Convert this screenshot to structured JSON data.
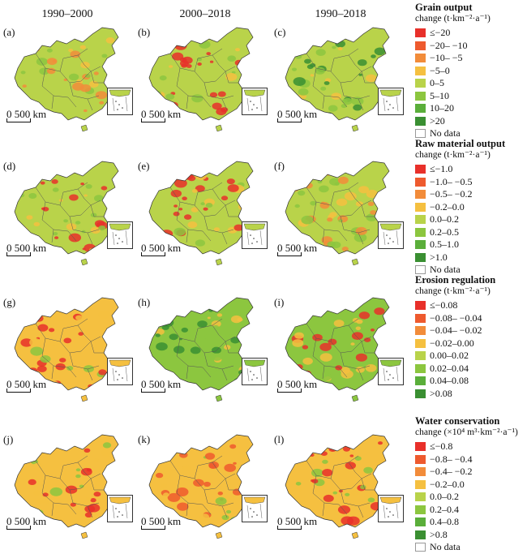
{
  "columns": [
    "1990–2000",
    "2000–2018",
    "1990–2018"
  ],
  "panel_letters": [
    "(a)",
    "(b)",
    "(c)",
    "(d)",
    "(e)",
    "(f)",
    "(g)",
    "(h)",
    "(i)",
    "(j)",
    "(k)",
    "(l)"
  ],
  "scale_label": "0 500 km",
  "legends": [
    {
      "title": "Grain output",
      "subtitle": "change (t·km⁻²·a⁻¹)",
      "classes": [
        "≤−20",
        "−20– −10",
        "−10– −5",
        "−5–0",
        "0–5",
        "5–10",
        "10–20",
        ">20"
      ],
      "colors": [
        "#e8302a",
        "#ee5a2e",
        "#f28c3a",
        "#f5c040",
        "#b9d34a",
        "#8cc63f",
        "#5aae3a",
        "#3a8f32"
      ],
      "no_data": "No data"
    },
    {
      "title": "Raw material output",
      "subtitle": "change (t·km⁻²·a⁻¹)",
      "classes": [
        "≤−1.0",
        "−1.0– −0.5",
        "−0.5– −0.2",
        "−0.2–0.0",
        "0.0–0.2",
        "0.2–0.5",
        "0.5–1.0",
        ">1.0"
      ],
      "colors": [
        "#e8302a",
        "#ee5a2e",
        "#f28c3a",
        "#f5c040",
        "#b9d34a",
        "#8cc63f",
        "#5aae3a",
        "#3a8f32"
      ],
      "no_data": "No data"
    },
    {
      "title": "Erosion regulation",
      "subtitle": "change (t·km⁻²·a⁻¹)",
      "classes": [
        "≤−0.08",
        "−0.08– −0.04",
        "−0.04– −0.02",
        "−0.02–0.00",
        "0.00–0.02",
        "0.02–0.04",
        "0.04–0.08",
        ">0.08"
      ],
      "colors": [
        "#e8302a",
        "#ee5a2e",
        "#f28c3a",
        "#f5c040",
        "#b9d34a",
        "#8cc63f",
        "#5aae3a",
        "#3a8f32"
      ],
      "no_data": ""
    },
    {
      "title": "Water conservation",
      "subtitle": "change (×10⁴ m³·km⁻²·a⁻¹)",
      "classes": [
        "≤−0.8",
        "−0.8– −0.4",
        "−0.4– −0.2",
        "−0.2–0.0",
        "0.0–0.2",
        "0.2–0.4",
        "0.4–0.8",
        ">0.8"
      ],
      "colors": [
        "#e8302a",
        "#ee5a2e",
        "#f28c3a",
        "#f5c040",
        "#b9d34a",
        "#8cc63f",
        "#5aae3a",
        "#3a8f32"
      ],
      "no_data": "No data"
    }
  ],
  "panel_base_colors": [
    "#b9d34a",
    "#b9d34a",
    "#b9d34a",
    "#b9d34a",
    "#b9d34a",
    "#b9d34a",
    "#f5c040",
    "#8cc63f",
    "#8cc63f",
    "#f5c040",
    "#f5c040",
    "#f5c040"
  ],
  "panel_accent_colors": [
    "#f28c3a",
    "#e8302a",
    "#3a8f32",
    "#e8302a",
    "#e8302a",
    "#f28c3a",
    "#e8302a",
    "#3a8f32",
    "#e8302a",
    "#e8302a",
    "#ee5a2e",
    "#e8302a"
  ]
}
